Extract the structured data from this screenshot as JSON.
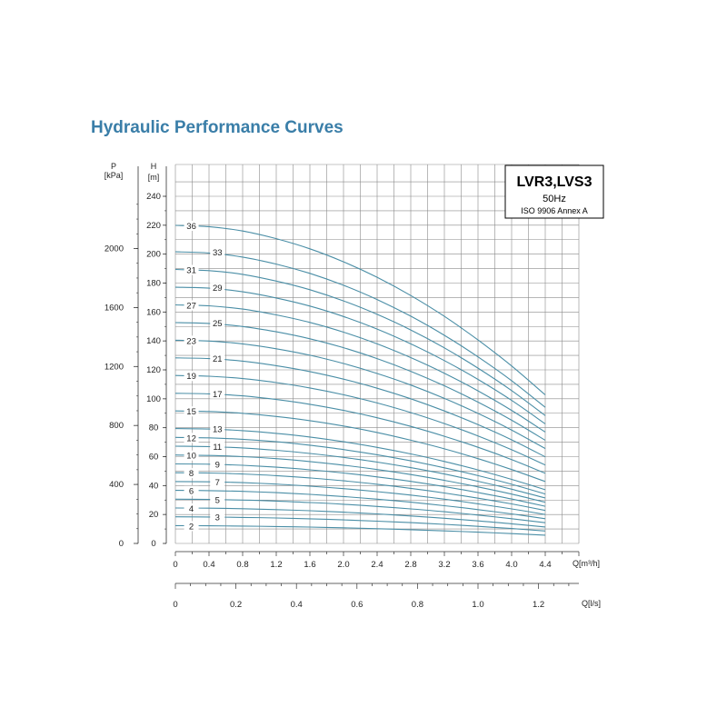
{
  "colors": {
    "title": "#3a7ea8",
    "curve": "#4a8ea6",
    "grid": "#8a8a8a",
    "axis": "#333333"
  },
  "chart_data": {
    "type": "line",
    "title": "Hydraulic Performance Curves",
    "model_box": {
      "model": "LVR3,LVS3",
      "frequency": "50Hz",
      "standard": "ISO 9906 Annex A"
    },
    "x_axis": {
      "label": "Q[m³/h]",
      "unit": "m³/h",
      "range": [
        0,
        4.4
      ],
      "ticks": [
        "0",
        "0.4",
        "0.8",
        "1.2",
        "1.6",
        "2.0",
        "2.4",
        "2.8",
        "3.2",
        "3.6",
        "4.0",
        "4.4"
      ]
    },
    "x_axis_secondary": {
      "label": "Q[l/s]",
      "unit": "l/s",
      "ticks": [
        "0",
        "0.2",
        "0.4",
        "0.6",
        "0.8",
        "1.0",
        "1.2"
      ]
    },
    "y_axis": {
      "label": "H",
      "unit": "[m]",
      "range": [
        0,
        240
      ],
      "ticks": [
        "0",
        "20",
        "40",
        "60",
        "80",
        "100",
        "120",
        "140",
        "160",
        "180",
        "200",
        "220",
        "240"
      ]
    },
    "y_axis_secondary": {
      "label": "P",
      "unit": "[kPa]",
      "ticks": [
        "0",
        "400",
        "800",
        "1200",
        "1600",
        "2000"
      ]
    },
    "grid": true,
    "x": [
      0,
      0.4,
      0.8,
      1.2,
      1.6,
      2.0,
      2.4,
      2.8,
      3.2,
      3.6,
      4.0,
      4.4
    ],
    "series": [
      {
        "name": "2",
        "values": [
          12.3,
          12.2,
          12.0,
          11.7,
          11.3,
          10.8,
          10.2,
          9.5,
          8.7,
          7.8,
          6.8,
          5.7
        ]
      },
      {
        "name": "3",
        "values": [
          18.4,
          18.3,
          18.0,
          17.6,
          17.0,
          16.3,
          15.4,
          14.4,
          13.2,
          11.8,
          10.3,
          8.6
        ]
      },
      {
        "name": "4",
        "values": [
          24.5,
          24.4,
          24.0,
          23.4,
          22.6,
          21.6,
          20.4,
          19.0,
          17.4,
          15.6,
          13.6,
          11.4
        ]
      },
      {
        "name": "5",
        "values": [
          30.6,
          30.4,
          30.0,
          29.3,
          28.3,
          27.1,
          25.6,
          23.9,
          21.9,
          19.6,
          17.1,
          14.3
        ]
      },
      {
        "name": "6",
        "values": [
          36.7,
          36.5,
          36.0,
          35.1,
          33.9,
          32.4,
          30.6,
          28.5,
          26.1,
          23.4,
          20.4,
          17.1
        ]
      },
      {
        "name": "7",
        "values": [
          42.8,
          42.6,
          42.0,
          41.0,
          39.6,
          37.9,
          35.8,
          33.4,
          30.6,
          27.4,
          23.9,
          20.0
        ]
      },
      {
        "name": "8",
        "values": [
          48.9,
          48.7,
          48.0,
          46.9,
          45.3,
          43.3,
          40.9,
          38.1,
          34.9,
          31.3,
          27.3,
          22.8
        ]
      },
      {
        "name": "9",
        "values": [
          55.0,
          54.8,
          54.0,
          52.7,
          50.9,
          48.7,
          46.0,
          42.9,
          39.3,
          35.2,
          30.7,
          25.7
        ]
      },
      {
        "name": "10",
        "values": [
          61.1,
          60.8,
          60.0,
          58.6,
          56.6,
          54.1,
          51.1,
          47.6,
          43.6,
          39.1,
          34.1,
          28.5
        ]
      },
      {
        "name": "11",
        "values": [
          67.2,
          66.9,
          66.0,
          64.4,
          62.2,
          59.5,
          56.2,
          52.4,
          48.0,
          43.0,
          37.5,
          31.4
        ]
      },
      {
        "name": "12",
        "values": [
          73.3,
          73.0,
          72.0,
          70.3,
          67.9,
          64.9,
          61.3,
          57.1,
          52.3,
          46.9,
          40.9,
          34.2
        ]
      },
      {
        "name": "13",
        "values": [
          79.4,
          79.1,
          78.0,
          76.1,
          73.6,
          70.3,
          66.4,
          61.9,
          56.7,
          50.8,
          44.3,
          37.1
        ]
      },
      {
        "name": "15",
        "values": [
          91.6,
          91.2,
          90.0,
          87.8,
          84.9,
          81.2,
          76.7,
          71.4,
          65.4,
          58.6,
          51.1,
          42.8
        ]
      },
      {
        "name": "17",
        "values": [
          103.8,
          103.4,
          102.0,
          99.5,
          96.2,
          92.0,
          86.9,
          80.9,
          74.1,
          66.5,
          58.0,
          48.5
        ]
      },
      {
        "name": "19",
        "values": [
          116.1,
          115.6,
          114.0,
          111.2,
          107.5,
          102.8,
          97.1,
          90.5,
          82.9,
          74.3,
          64.8,
          54.2
        ]
      },
      {
        "name": "21",
        "values": [
          128.3,
          127.8,
          126.0,
          122.9,
          118.8,
          113.6,
          107.3,
          100.0,
          91.6,
          82.1,
          71.6,
          59.9
        ]
      },
      {
        "name": "23",
        "values": [
          140.5,
          139.9,
          138.0,
          134.6,
          130.1,
          124.4,
          117.5,
          109.5,
          100.3,
          89.9,
          78.4,
          65.6
        ]
      },
      {
        "name": "25",
        "values": [
          152.7,
          152.1,
          150.0,
          146.3,
          141.5,
          135.3,
          127.8,
          119.0,
          109.0,
          97.7,
          85.2,
          71.3
        ]
      },
      {
        "name": "27",
        "values": [
          164.9,
          164.3,
          162.0,
          158.0,
          152.8,
          146.1,
          138.0,
          128.5,
          117.7,
          105.5,
          92.0,
          77.0
        ]
      },
      {
        "name": "29",
        "values": [
          177.1,
          176.5,
          174.0,
          169.7,
          164.1,
          156.9,
          148.2,
          138.0,
          126.4,
          113.4,
          98.9,
          82.7
        ]
      },
      {
        "name": "31",
        "values": [
          189.4,
          188.6,
          186.0,
          181.4,
          175.4,
          167.7,
          158.4,
          147.6,
          135.2,
          121.2,
          105.7,
          88.4
        ]
      },
      {
        "name": "33",
        "values": [
          201.6,
          200.8,
          198.0,
          193.1,
          186.7,
          178.5,
          168.6,
          157.1,
          143.9,
          129.0,
          112.5,
          94.1
        ]
      },
      {
        "name": "36",
        "values": [
          219.9,
          219.0,
          216.0,
          210.7,
          203.7,
          194.7,
          184.0,
          171.4,
          157.0,
          140.7,
          122.7,
          102.7
        ]
      }
    ]
  }
}
